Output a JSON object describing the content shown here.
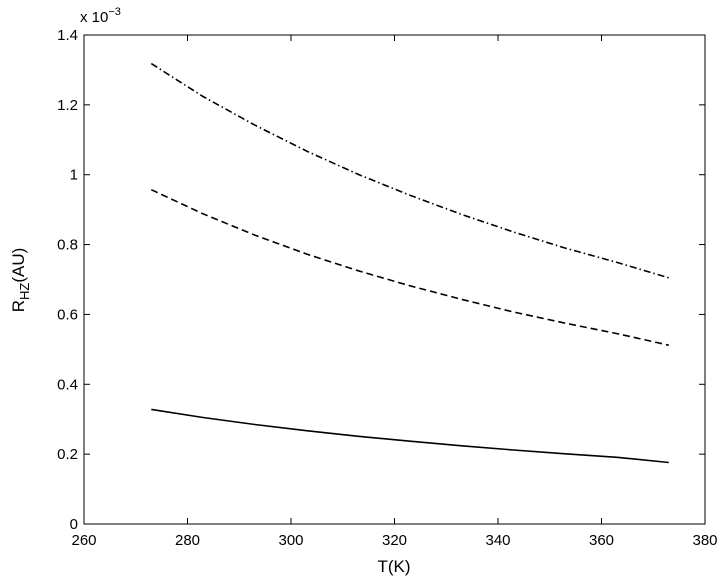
{
  "chart_data": {
    "type": "line",
    "xlabel": "T(K)",
    "ylabel_main": "R",
    "ylabel_sub": "HZ",
    "ylabel_suffix": "(AU)",
    "y_multiplier_base": "x 10",
    "y_multiplier_exp": "−3",
    "xlim": [
      260,
      380
    ],
    "ylim": [
      0,
      1.4
    ],
    "x_ticks": [
      260,
      280,
      300,
      320,
      340,
      360,
      380
    ],
    "x_tick_labels": [
      "260",
      "280",
      "300",
      "320",
      "340",
      "360",
      "380"
    ],
    "y_ticks": [
      0,
      0.2,
      0.4,
      0.6,
      0.8,
      1.0,
      1.2,
      1.4
    ],
    "y_tick_labels": [
      "0",
      "0.2",
      "0.4",
      "0.6",
      "0.8",
      "1",
      "1.2",
      "1.4"
    ],
    "grid": false,
    "line_color": "#000000",
    "series": [
      {
        "style": "solid",
        "x": [
          273,
          283,
          293,
          303,
          313,
          323,
          333,
          343,
          353,
          363,
          373
        ],
        "y": [
          0.328,
          0.305,
          0.285,
          0.267,
          0.251,
          0.237,
          0.224,
          0.212,
          0.201,
          0.191,
          0.176
        ]
      },
      {
        "style": "dashed",
        "x": [
          273,
          283,
          293,
          303,
          313,
          323,
          333,
          343,
          353,
          363,
          373
        ],
        "y": [
          0.957,
          0.888,
          0.827,
          0.773,
          0.725,
          0.682,
          0.643,
          0.607,
          0.575,
          0.545,
          0.512
        ]
      },
      {
        "style": "dashdot",
        "x": [
          273,
          283,
          293,
          303,
          313,
          323,
          333,
          343,
          353,
          363,
          373
        ],
        "y": [
          1.318,
          1.224,
          1.142,
          1.068,
          1.001,
          0.941,
          0.886,
          0.836,
          0.79,
          0.749,
          0.705
        ]
      }
    ]
  }
}
